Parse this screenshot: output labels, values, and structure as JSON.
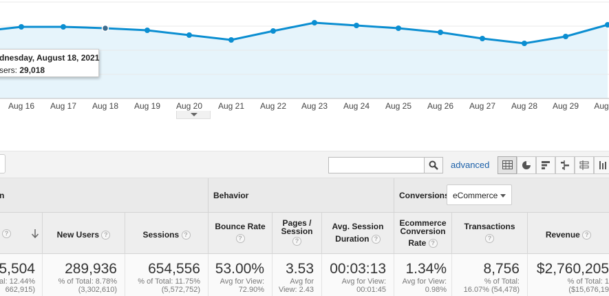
{
  "chart": {
    "color": "#0b8ed1",
    "fill": "#e6f4fb",
    "x_labels": [
      "Aug 16",
      "Aug 17",
      "Aug 18",
      "Aug 19",
      "Aug 20",
      "Aug 21",
      "Aug 22",
      "Aug 23",
      "Aug 24",
      "Aug 25",
      "Aug 26",
      "Aug 27",
      "Aug 28",
      "Aug 29",
      "Aug"
    ],
    "tooltip": {
      "date": "dnesday, August 18, 2021",
      "metric_label": "sers:",
      "metric_value": "29,018"
    }
  },
  "toolbar": {
    "search": {
      "value": "",
      "placeholder": ""
    },
    "advanced_label": "advanced",
    "view_icons": [
      "table-icon",
      "pie-icon",
      "performance-icon",
      "comparison-icon",
      "pivot-icon",
      "term-cloud-icon"
    ]
  },
  "groups": {
    "acquisition": "n",
    "behavior": "Behavior",
    "conversions": "Conversions",
    "conversions_select": "eCommerce"
  },
  "columns": {
    "users": "",
    "new_users": "New Users",
    "sessions": "Sessions",
    "bounce_rate": "Bounce Rate",
    "pages_session_1": "Pages /",
    "pages_session_2": "Session",
    "avg_session_1": "Avg. Session",
    "avg_session_2": "Duration",
    "ecom_1": "Ecommerce",
    "ecom_2": "Conversion",
    "ecom_3": "Rate",
    "transactions": "Transactions",
    "revenue": "Revenue"
  },
  "totals": {
    "users": {
      "value": "5,504",
      "sub1": "tal: 12.44%",
      "sub2": "662,915)"
    },
    "new_users": {
      "value": "289,936",
      "sub1": "% of Total: 8.78%",
      "sub2": "(3,302,610)"
    },
    "sessions": {
      "value": "654,556",
      "sub1": "% of Total: 11.75%",
      "sub2": "(5,572,752)"
    },
    "bounce_rate": {
      "value": "53.00%",
      "sub1": "Avg for View:",
      "sub2": "72.90%"
    },
    "pages_session": {
      "value": "3.53",
      "sub1": "Avg for",
      "sub2": "View: 2.43"
    },
    "avg_session": {
      "value": "00:03:13",
      "sub1": "Avg for View:",
      "sub2": "00:01:45"
    },
    "ecom_rate": {
      "value": "1.34%",
      "sub1": "Avg for View:",
      "sub2": "0.98%"
    },
    "transactions": {
      "value": "8,756",
      "sub1": "% of Total:",
      "sub2": "16.07% (54,478)"
    },
    "revenue": {
      "value": "$2,760,205",
      "sub1": "% of Total: 1",
      "sub2": "($15,676,19"
    }
  }
}
